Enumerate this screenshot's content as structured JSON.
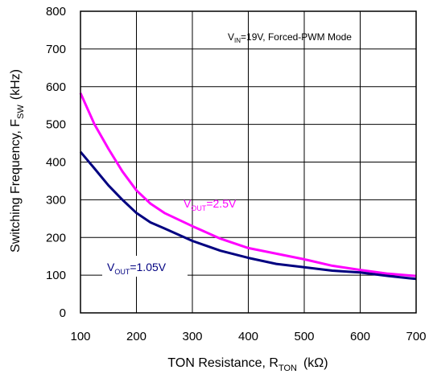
{
  "chart_data": {
    "type": "line",
    "x_axis": {
      "label_main": "TON Resistance, R",
      "label_sub": "TON",
      "label_unit": "(kΩ)",
      "range": [
        100,
        700
      ],
      "ticks": [
        100,
        200,
        300,
        400,
        500,
        600,
        700
      ],
      "tick_labels": [
        "100",
        "200",
        "300",
        "400",
        "500",
        "600",
        "700"
      ]
    },
    "y_axis": {
      "label_main": "Switching Frequency, F",
      "label_sub": "SW",
      "label_unit": "(kHz)",
      "range": [
        0,
        800
      ],
      "ticks": [
        0,
        100,
        200,
        300,
        400,
        500,
        600,
        700,
        800
      ],
      "tick_labels": [
        "0",
        "100",
        "200",
        "300",
        "400",
        "500",
        "600",
        "700",
        "800"
      ]
    },
    "grid": true,
    "annotation": {
      "pre": "V",
      "sub": "IN",
      "post": "=19V, Forced-PWM Mode"
    },
    "series": [
      {
        "label_pre": "V",
        "label_sub": "OUT",
        "label_post": "=2.5V",
        "color": "#ff00ff",
        "x": [
          100,
          125,
          150,
          175,
          200,
          225,
          250,
          300,
          350,
          400,
          450,
          500,
          550,
          600,
          650,
          700
        ],
        "y": [
          583,
          500,
          435,
          375,
          325,
          290,
          265,
          230,
          197,
          172,
          157,
          142,
          125,
          114,
          104,
          98
        ]
      },
      {
        "label_pre": "V",
        "label_sub": "OUT",
        "label_post": "=1.05V",
        "color": "#000080",
        "x": [
          100,
          125,
          150,
          175,
          200,
          225,
          250,
          300,
          350,
          400,
          450,
          500,
          550,
          600,
          650,
          700
        ],
        "y": [
          427,
          383,
          338,
          300,
          265,
          240,
          224,
          191,
          165,
          146,
          130,
          121,
          112,
          107,
          98,
          90
        ]
      }
    ]
  }
}
